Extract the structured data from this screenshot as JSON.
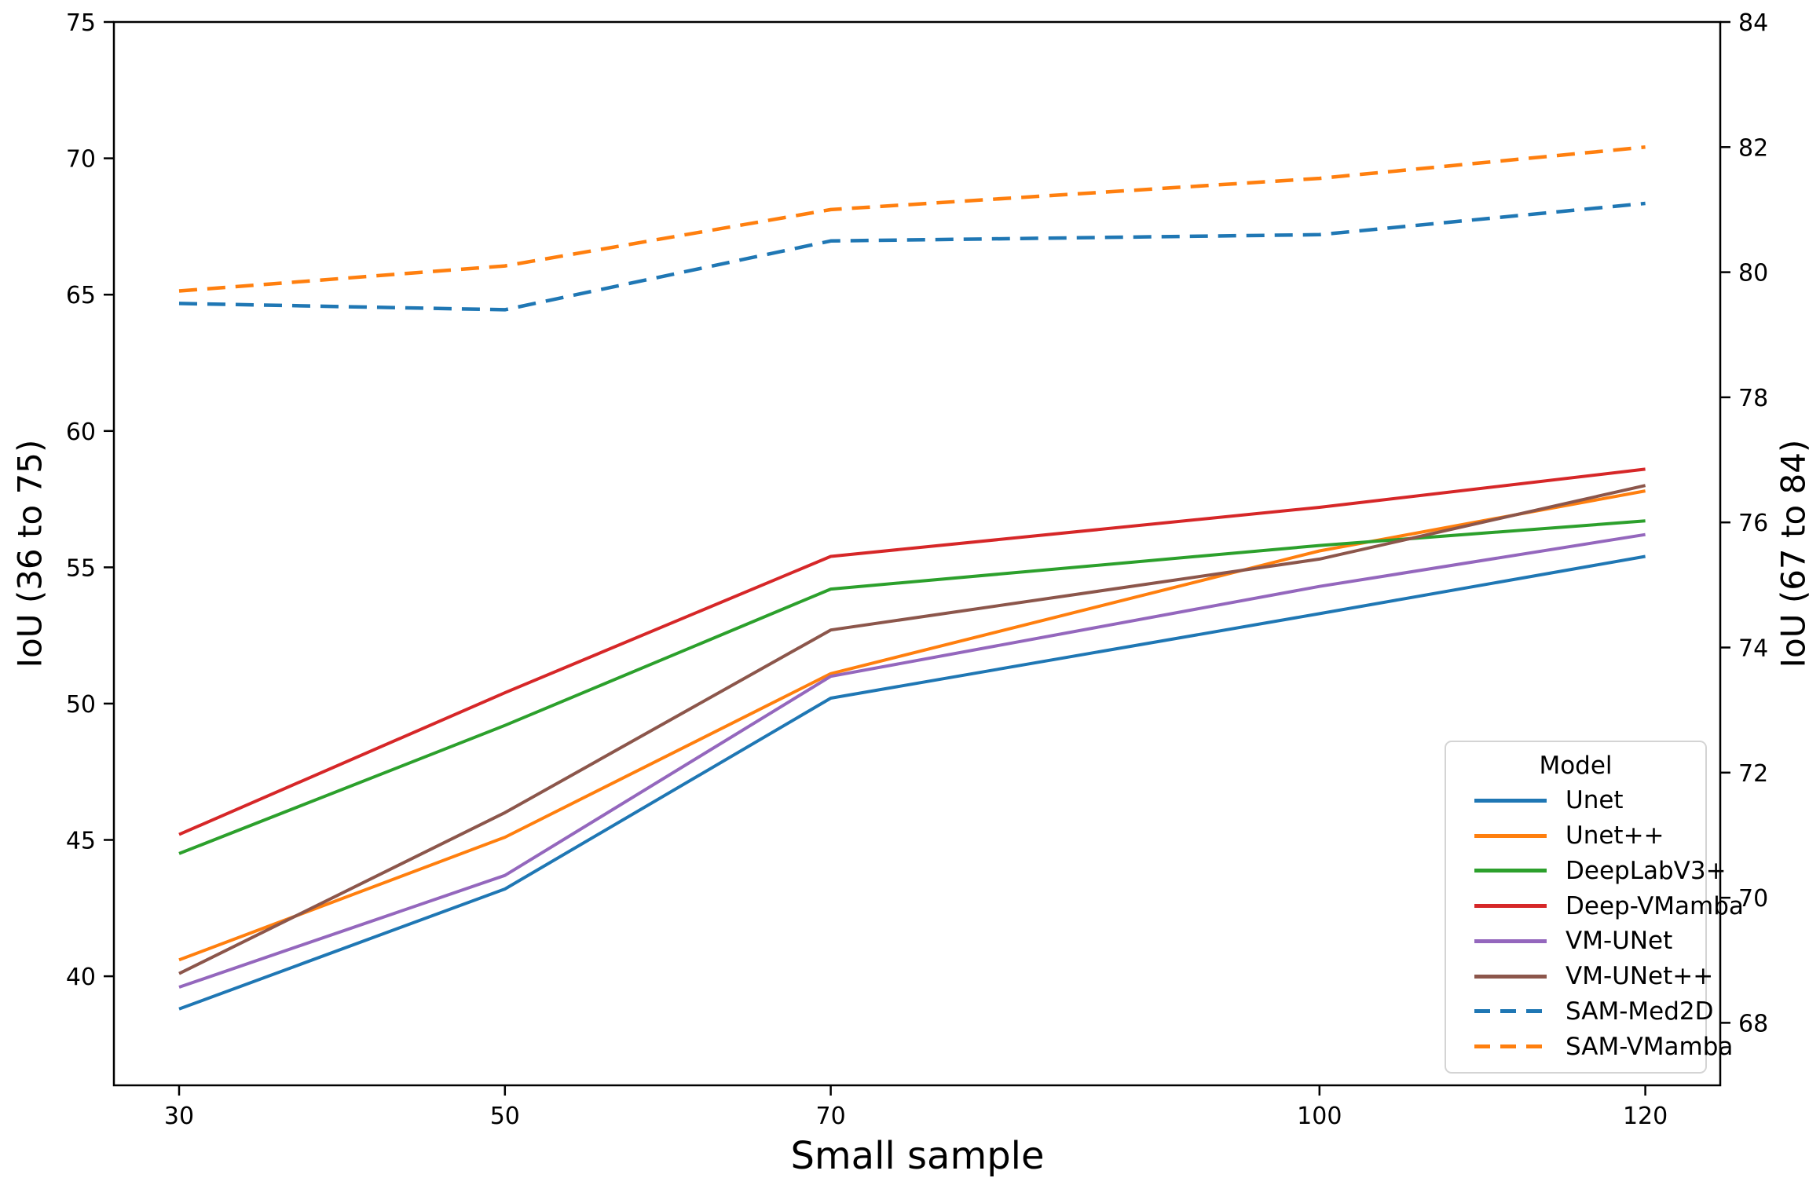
{
  "chart_data": {
    "type": "line",
    "title": "",
    "xlabel": "Small sample",
    "ylabel_left": "IoU (36 to 75)",
    "ylabel_right": "IoU (67 to 84)",
    "grid": false,
    "x": [
      30,
      50,
      70,
      100,
      120
    ],
    "x_ticks": [
      30,
      50,
      70,
      100,
      120
    ],
    "xlim": [
      26,
      124.6
    ],
    "ylim_left": [
      36,
      75
    ],
    "ylim_right": [
      67,
      84
    ],
    "y_ticks_left": [
      40,
      45,
      50,
      55,
      60,
      65,
      70,
      75
    ],
    "y_ticks_right": [
      68,
      70,
      72,
      74,
      76,
      78,
      80,
      82,
      84
    ],
    "legend": {
      "title": "Model",
      "position": "lower right inside"
    },
    "series": [
      {
        "name": "Unet",
        "axis": "left",
        "style": "solid",
        "color": "#1f77b4",
        "values": [
          38.8,
          43.2,
          50.2,
          53.3,
          55.4
        ]
      },
      {
        "name": "Unet++",
        "axis": "left",
        "style": "solid",
        "color": "#ff7f0e",
        "values": [
          40.6,
          45.1,
          51.1,
          55.6,
          57.8
        ]
      },
      {
        "name": "DeepLabV3+",
        "axis": "left",
        "style": "solid",
        "color": "#2ca02c",
        "values": [
          44.5,
          49.2,
          54.2,
          55.8,
          56.7
        ]
      },
      {
        "name": "Deep-VMamba",
        "axis": "left",
        "style": "solid",
        "color": "#d62728",
        "values": [
          45.2,
          50.4,
          55.4,
          57.2,
          58.6
        ]
      },
      {
        "name": "VM-UNet",
        "axis": "left",
        "style": "solid",
        "color": "#9467bd",
        "values": [
          39.6,
          43.7,
          51.0,
          54.3,
          56.2
        ]
      },
      {
        "name": "VM-UNet++",
        "axis": "left",
        "style": "solid",
        "color": "#8c564b",
        "values": [
          40.1,
          46.0,
          52.7,
          55.3,
          58.0
        ]
      },
      {
        "name": "SAM-Med2D",
        "axis": "right",
        "style": "dashed",
        "color": "#1f77b4",
        "values": [
          79.5,
          79.4,
          80.5,
          80.6,
          81.1
        ]
      },
      {
        "name": "SAM-VMamba",
        "axis": "right",
        "style": "dashed",
        "color": "#ff7f0e",
        "values": [
          79.7,
          80.1,
          81.0,
          81.5,
          82.0
        ]
      }
    ]
  }
}
